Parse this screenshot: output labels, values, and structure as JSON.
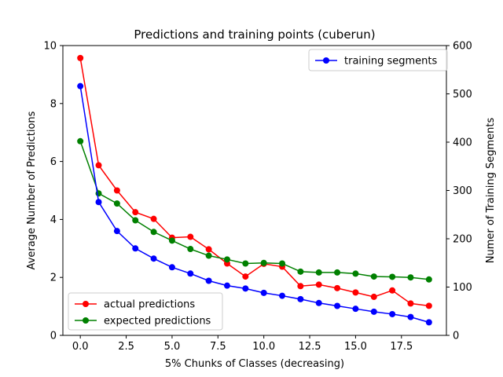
{
  "chart_data": {
    "type": "line",
    "title": "Predictions and training points (cuberun)",
    "xlabel": "5% Chunks of Classes (decreasing)",
    "ylabel": "Average Number of Predictions",
    "y2label": "Numer of Training Segments",
    "xlim": [
      -0.95,
      19.95
    ],
    "ylim": [
      0,
      10
    ],
    "y2lim": [
      0,
      600
    ],
    "x_ticks": [
      0.0,
      2.5,
      5.0,
      7.5,
      10.0,
      12.5,
      15.0,
      17.5
    ],
    "x_tick_labels": [
      "0.0",
      "2.5",
      "5.0",
      "7.5",
      "10.0",
      "12.5",
      "15.0",
      "17.5"
    ],
    "y_ticks": [
      0,
      2,
      4,
      6,
      8,
      10
    ],
    "y_tick_labels": [
      "0",
      "2",
      "4",
      "6",
      "8",
      "10"
    ],
    "y2_ticks": [
      0,
      100,
      200,
      300,
      400,
      500,
      600
    ],
    "y2_tick_labels": [
      "0",
      "100",
      "200",
      "300",
      "400",
      "500",
      "600"
    ],
    "x": [
      0,
      1,
      2,
      3,
      4,
      5,
      6,
      7,
      8,
      9,
      10,
      11,
      12,
      13,
      14,
      15,
      16,
      17,
      18,
      19
    ],
    "series": [
      {
        "name": "actual predictions",
        "axis": "left",
        "color": "#ff0000",
        "values": [
          9.57,
          5.87,
          5.0,
          4.25,
          4.02,
          3.37,
          3.4,
          2.97,
          2.48,
          2.03,
          2.47,
          2.37,
          1.7,
          1.75,
          1.63,
          1.48,
          1.33,
          1.55,
          1.1,
          1.02
        ]
      },
      {
        "name": "expected predictions",
        "axis": "left",
        "color": "#008000",
        "values": [
          6.7,
          4.9,
          4.55,
          3.97,
          3.57,
          3.27,
          2.98,
          2.75,
          2.62,
          2.48,
          2.5,
          2.48,
          2.2,
          2.17,
          2.17,
          2.13,
          2.03,
          2.02,
          2.0,
          1.93
        ]
      },
      {
        "name": "training segments",
        "axis": "right",
        "color": "#0000ff",
        "values": [
          516,
          276,
          216,
          180,
          159,
          141,
          128,
          113,
          103,
          97,
          88,
          82,
          75,
          67,
          61,
          55,
          49,
          44,
          38,
          27
        ]
      }
    ],
    "legend_left": {
      "placement": "lower-left",
      "entries": [
        "actual predictions",
        "expected predictions"
      ]
    },
    "legend_right": {
      "placement": "upper-right",
      "entries": [
        "training segments"
      ]
    }
  }
}
